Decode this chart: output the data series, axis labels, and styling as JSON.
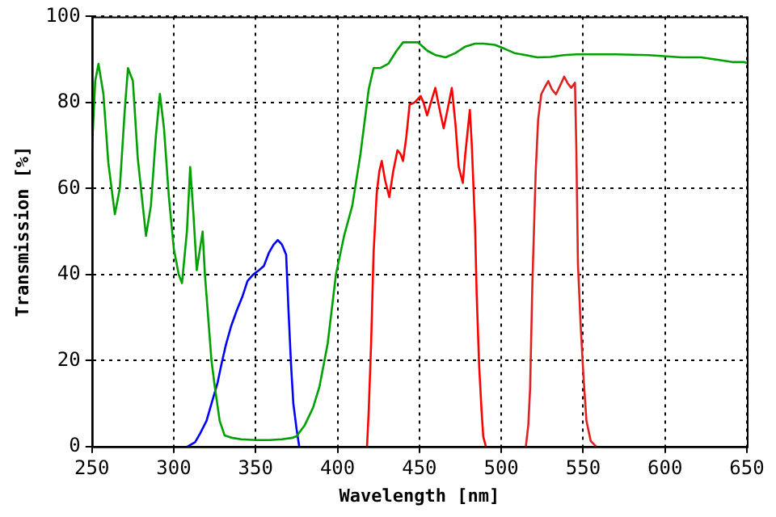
{
  "chart_data": {
    "type": "line",
    "xlabel": "Wavelength [nm]",
    "ylabel": "Transmission [%]",
    "xlim": [
      250,
      650
    ],
    "xticks": [
      250,
      300,
      350,
      400,
      450,
      500,
      550,
      600,
      650
    ],
    "ylim": [
      0,
      100
    ],
    "yticks": [
      0,
      20,
      40,
      60,
      80,
      100
    ],
    "grid": true,
    "legend": false,
    "marker": "none",
    "line_style": "solid",
    "series": [
      {
        "color": "#00a000",
        "x": [
          250,
          252,
          254,
          257,
          260,
          264,
          267,
          270,
          272,
          275,
          278,
          283,
          286,
          289,
          291.5,
          294,
          297,
          300,
          303,
          305,
          308,
          310,
          312,
          314,
          316,
          317.6,
          319,
          321,
          323,
          325,
          328,
          331,
          336,
          341,
          350,
          358.5,
          366,
          372,
          375,
          380,
          385,
          389,
          394,
          399,
          404,
          409,
          414,
          419,
          422,
          426,
          431,
          436,
          440,
          444,
          449,
          455,
          460,
          466,
          472,
          478,
          484,
          489,
          496,
          502,
          508,
          515,
          522,
          530,
          538,
          546,
          556,
          570,
          590,
          610,
          622,
          633,
          641,
          648,
          650
        ],
        "values": [
          69,
          85,
          89,
          82,
          66,
          54,
          60,
          78,
          88,
          85,
          67,
          49,
          56,
          72,
          82,
          74,
          58,
          46,
          40,
          38,
          50,
          65,
          54,
          41,
          46,
          50,
          40,
          30,
          20,
          14,
          6,
          2.6,
          2,
          1.7,
          1.5,
          1.5,
          1.7,
          2,
          2.4,
          5,
          9,
          14,
          24,
          40,
          49,
          56,
          68,
          83,
          88,
          88,
          89,
          92,
          94,
          94,
          94,
          92,
          91,
          90.5,
          91.5,
          93,
          93.7,
          93.7,
          93.4,
          92.5,
          91.5,
          91,
          90.5,
          90.6,
          91,
          91.2,
          91.2,
          91.2,
          91,
          90.5,
          90.5,
          89.9,
          89.4,
          89.4,
          89.2
        ]
      },
      {
        "color": "#0000ff",
        "x": [
          308.3,
          313,
          316,
          320,
          323,
          326.7,
          329,
          331.7,
          335,
          338.4,
          342,
          345,
          348.5,
          352,
          355,
          358,
          361,
          363.5,
          366,
          368.6,
          370,
          371.6,
          373,
          375,
          376.6
        ],
        "values": [
          0,
          1,
          3,
          6,
          10,
          14.8,
          19,
          23.5,
          28,
          31.6,
          35,
          38.5,
          40,
          41,
          42,
          45,
          47,
          48,
          47,
          44.6,
          32,
          19,
          10,
          4,
          0
        ]
      },
      {
        "color": "#ff0000",
        "x": [
          418,
          419,
          420.5,
          422,
          423.9,
          425.5,
          427,
          429,
          431.6,
          434,
          436.6,
          438.5,
          440,
          442,
          444,
          447,
          450.7,
          452.5,
          454.7,
          457,
          459.7,
          462,
          464.8,
          467,
          469.8,
          472,
          474,
          476.5,
          478,
          480.8,
          482,
          484,
          485,
          486.5,
          488,
          489,
          490.6
        ],
        "values": [
          0,
          8,
          24,
          45,
          58.8,
          64,
          66.4,
          62,
          58,
          64,
          68.9,
          68,
          66.4,
          72,
          79.5,
          80,
          81.5,
          80,
          77,
          80,
          83.4,
          79,
          74,
          78,
          83.4,
          75,
          65,
          61.3,
          68,
          78.3,
          70,
          51,
          35,
          18.6,
          8,
          2.3,
          0
        ]
      },
      {
        "color": "#dd2222",
        "x": [
          515,
          516.5,
          517.6,
          519,
          521,
          522.5,
          524.4,
          526.5,
          528.7,
          531,
          533.4,
          536,
          538.4,
          540.5,
          542.7,
          545,
          545.8,
          546.8,
          548.5,
          550.2,
          552,
          554.6,
          558
        ],
        "values": [
          0,
          5,
          13.5,
          38,
          63.7,
          76,
          81.9,
          83.5,
          85,
          83,
          81.9,
          84,
          86,
          84.5,
          83.4,
          84.6,
          70,
          42.6,
          28,
          16.3,
          6,
          1.3,
          0
        ]
      }
    ]
  }
}
